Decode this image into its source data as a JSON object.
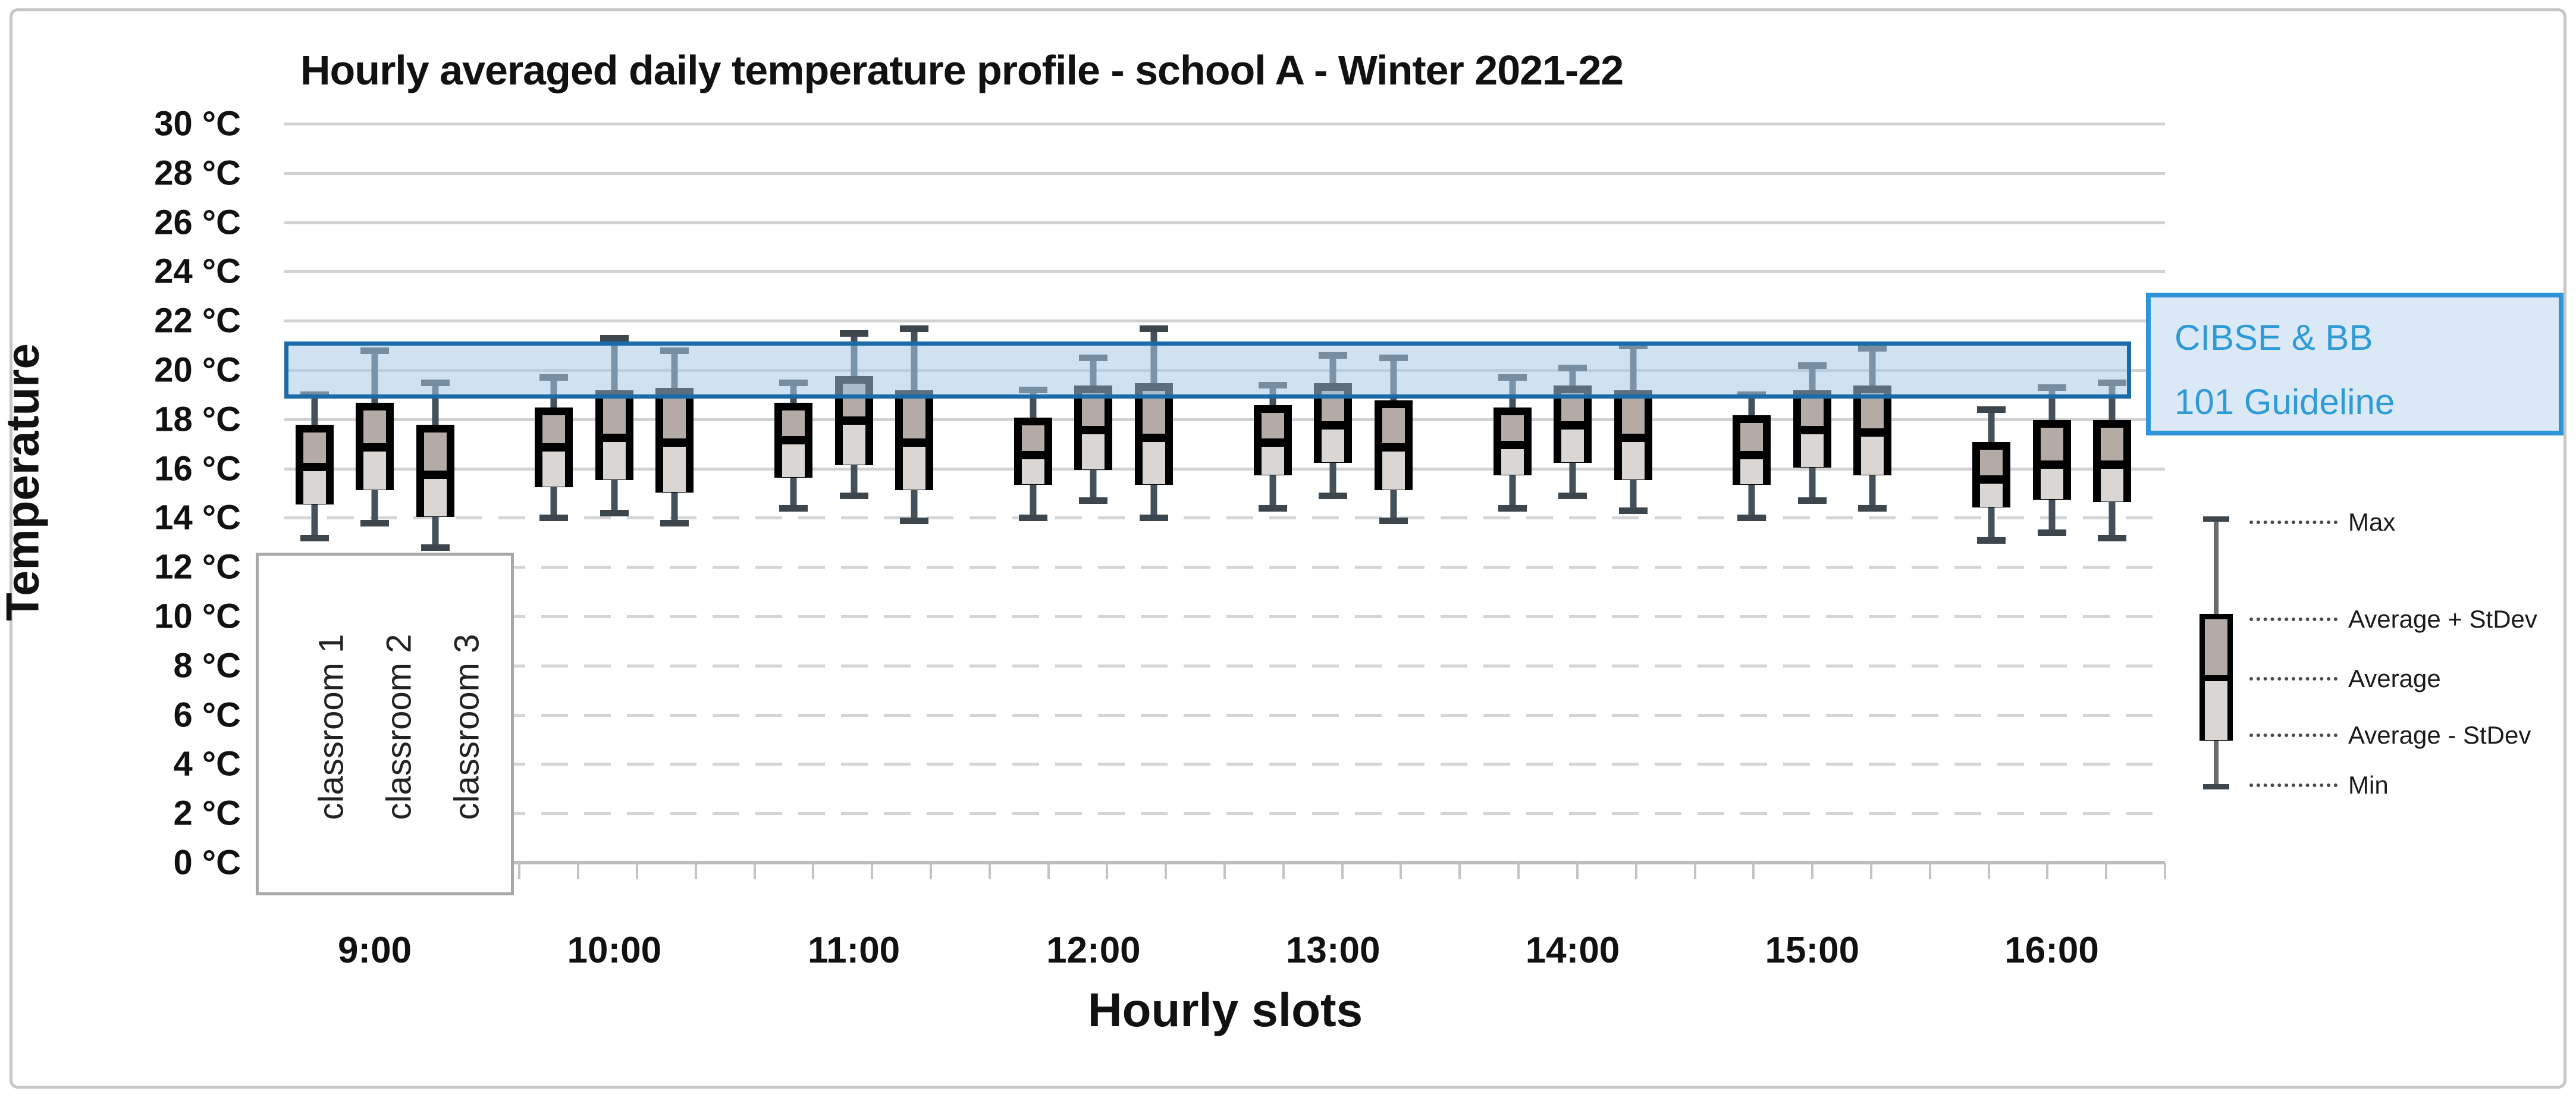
{
  "title": "Hourly averaged daily temperature profile - school A - Winter 2021-22",
  "y_axis": {
    "title": "Temperature",
    "min": 0,
    "max": 30,
    "step": 2,
    "unit": "°C"
  },
  "x_axis": {
    "title": "Hourly slots"
  },
  "series_labels": [
    "classroom 1",
    "classroom 2",
    "classroom 3"
  ],
  "guideline": {
    "label_line1": "CIBSE & BB",
    "label_line2": "101 Guideline"
  },
  "legend": {
    "entries": [
      "Max",
      "Average + StDev",
      "Average",
      "Average - StDev",
      "Min"
    ]
  },
  "colors": {
    "band_fill": "rgba(168,203,232,0.55)",
    "band_border": "#1b6ba8",
    "box_upper_fill": "#b4aba7",
    "box_lower_fill": "#d9d6d4",
    "box_border": "#000000",
    "whisker_stem": "#44515a",
    "whisker_cap": "#3d464d",
    "gridline": "#d2d2d2",
    "axis_line": "#bdbdbd",
    "guideline_text": "#2f9ad6",
    "guideline_box_border": "#2e96d8",
    "guideline_box_fill": "#dbe9f6"
  },
  "chart_data": {
    "type": "box",
    "title": "Hourly averaged daily temperature profile - school A - Winter 2021-22",
    "xlabel": "Hourly slots",
    "ylabel": "Temperature",
    "ylim": [
      0,
      30
    ],
    "ytick_step": 2,
    "y_unit": "°C",
    "grid": "horizontal",
    "categories": [
      "9:00",
      "10:00",
      "11:00",
      "12:00",
      "13:00",
      "14:00",
      "15:00",
      "16:00"
    ],
    "stat_order": [
      "max",
      "avg_plus_stdev",
      "avg",
      "avg_minus_stdev",
      "min"
    ],
    "series": [
      {
        "name": "classroom 1",
        "stats": [
          [
            19.0,
            17.6,
            16.2,
            14.7,
            13.2
          ],
          [
            19.7,
            18.3,
            17.0,
            15.4,
            14.0
          ],
          [
            19.5,
            18.5,
            17.3,
            15.8,
            14.4
          ],
          [
            19.2,
            17.9,
            16.7,
            15.5,
            14.0
          ],
          [
            19.4,
            18.4,
            17.2,
            15.9,
            14.4
          ],
          [
            19.7,
            18.3,
            17.1,
            15.9,
            14.4
          ],
          [
            19.0,
            18.0,
            16.7,
            15.5,
            14.0
          ],
          [
            18.4,
            16.9,
            15.7,
            14.6,
            13.1
          ]
        ]
      },
      {
        "name": "classroom 2",
        "stats": [
          [
            20.8,
            18.5,
            17.0,
            15.3,
            13.8
          ],
          [
            21.3,
            19.0,
            17.4,
            15.7,
            14.2
          ],
          [
            21.5,
            19.6,
            18.1,
            16.3,
            14.9
          ],
          [
            20.5,
            19.2,
            17.7,
            16.1,
            14.7
          ],
          [
            20.6,
            19.3,
            17.9,
            16.4,
            14.9
          ],
          [
            20.1,
            19.2,
            17.9,
            16.4,
            14.9
          ],
          [
            20.2,
            19.0,
            17.7,
            16.2,
            14.7
          ],
          [
            19.3,
            17.8,
            16.3,
            14.9,
            13.4
          ]
        ]
      },
      {
        "name": "classroom 3",
        "stats": [
          [
            19.5,
            17.6,
            15.9,
            14.2,
            12.8
          ],
          [
            20.8,
            19.1,
            17.2,
            15.2,
            13.8
          ],
          [
            21.7,
            19.0,
            17.2,
            15.3,
            13.9
          ],
          [
            21.7,
            19.3,
            17.4,
            15.5,
            14.0
          ],
          [
            20.5,
            18.6,
            17.0,
            15.3,
            13.9
          ],
          [
            21.0,
            19.0,
            17.4,
            15.7,
            14.3
          ],
          [
            20.9,
            19.2,
            17.6,
            15.9,
            14.4
          ],
          [
            19.5,
            17.8,
            16.3,
            14.8,
            13.2
          ]
        ]
      }
    ],
    "guideline_band": {
      "label": "CIBSE & BB 101 Guideline",
      "y_from": 19,
      "y_to": 21
    },
    "legend_position": "right"
  }
}
